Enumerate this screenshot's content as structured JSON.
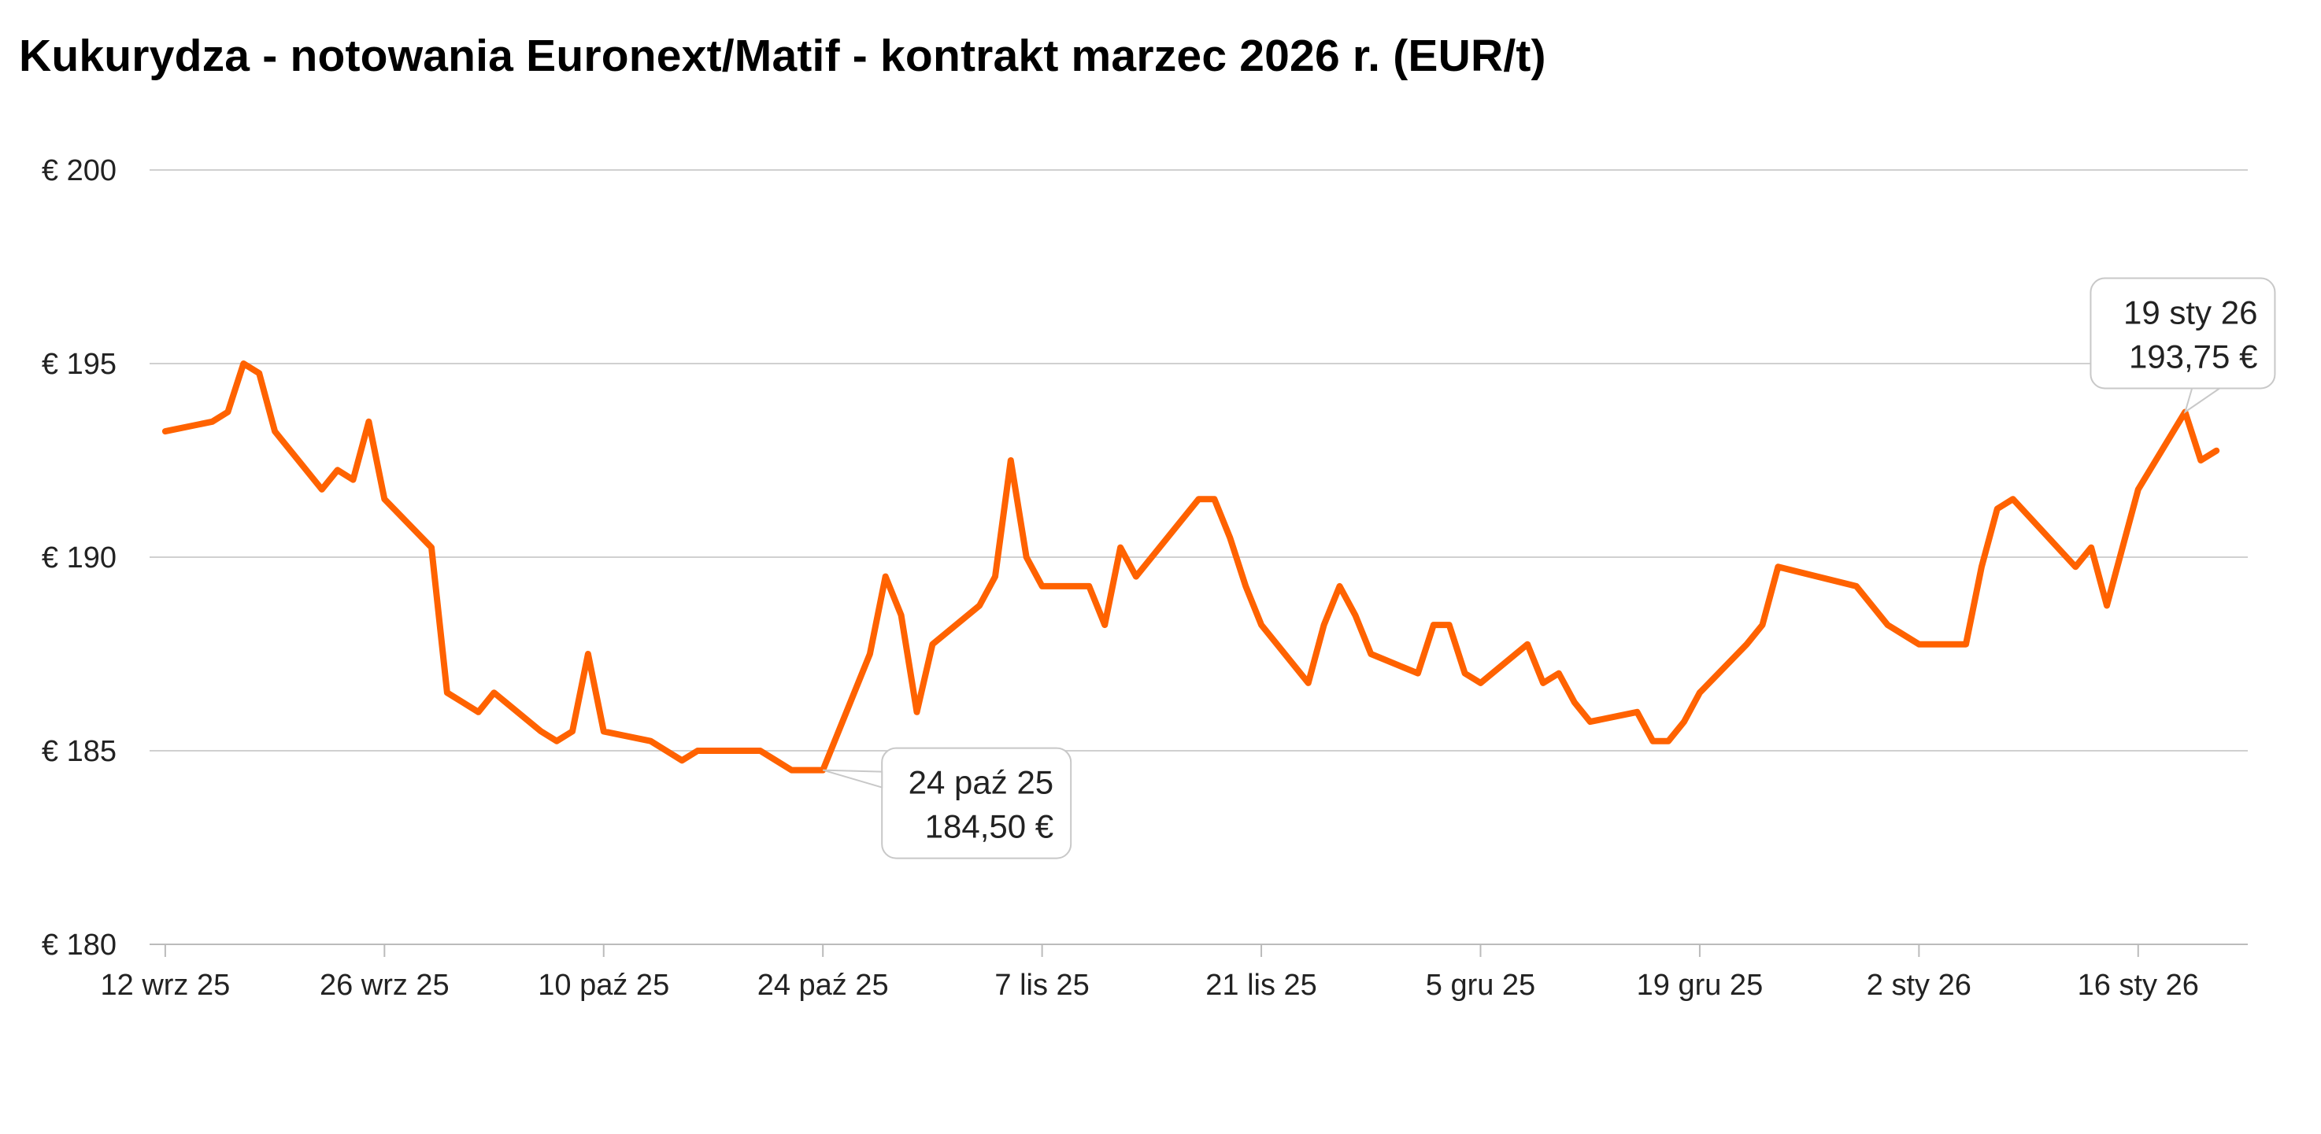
{
  "chart_data": {
    "type": "line",
    "title": "Kukurydza - notowania Euronext/Matif - kontrakt marzec 2026 r. (EUR/t)",
    "xlabel": "",
    "ylabel": "",
    "ylim": [
      180,
      200
    ],
    "y_ticks": [
      200,
      195,
      190,
      185,
      180
    ],
    "y_tick_labels": [
      "€ 200",
      "€ 195",
      "€ 190",
      "€ 185",
      "€ 180"
    ],
    "x_tick_labels": [
      "12 wrz 25",
      "26 wrz 25",
      "10 paź 25",
      "24 paź 25",
      "7 lis 25",
      "21 lis 25",
      "5 gru 25",
      "19 gru 25",
      "2 sty 26",
      "16 sty 26"
    ],
    "x_tick_dates": [
      "2025-09-12",
      "2025-09-26",
      "2025-10-10",
      "2025-10-24",
      "2025-11-07",
      "2025-11-21",
      "2025-12-05",
      "2025-12-19",
      "2026-01-02",
      "2026-01-16"
    ],
    "grid": true,
    "line_color": "#FF6200",
    "series": [
      {
        "name": "",
        "points": [
          [
            "2025-09-12",
            193.25
          ],
          [
            "2025-09-15",
            193.5
          ],
          [
            "2025-09-16",
            193.75
          ],
          [
            "2025-09-17",
            195.0
          ],
          [
            "2025-09-18",
            194.75
          ],
          [
            "2025-09-19",
            193.25
          ],
          [
            "2025-09-22",
            191.75
          ],
          [
            "2025-09-23",
            192.25
          ],
          [
            "2025-09-24",
            192.0
          ],
          [
            "2025-09-25",
            193.5
          ],
          [
            "2025-09-26",
            191.5
          ],
          [
            "2025-09-29",
            190.25
          ],
          [
            "2025-09-30",
            186.5
          ],
          [
            "2025-10-01",
            186.25
          ],
          [
            "2025-10-02",
            186.0
          ],
          [
            "2025-10-03",
            186.5
          ],
          [
            "2025-10-06",
            185.5
          ],
          [
            "2025-10-07",
            185.25
          ],
          [
            "2025-10-08",
            185.5
          ],
          [
            "2025-10-09",
            187.5
          ],
          [
            "2025-10-10",
            185.5
          ],
          [
            "2025-10-13",
            185.25
          ],
          [
            "2025-10-14",
            185.0
          ],
          [
            "2025-10-15",
            184.75
          ],
          [
            "2025-10-16",
            185.0
          ],
          [
            "2025-10-17",
            185.0
          ],
          [
            "2025-10-20",
            185.0
          ],
          [
            "2025-10-21",
            184.75
          ],
          [
            "2025-10-22",
            184.5
          ],
          [
            "2025-10-23",
            184.5
          ],
          [
            "2025-10-24",
            184.5
          ],
          [
            "2025-10-27",
            187.5
          ],
          [
            "2025-10-28",
            189.5
          ],
          [
            "2025-10-29",
            188.5
          ],
          [
            "2025-10-30",
            186.0
          ],
          [
            "2025-10-31",
            187.75
          ],
          [
            "2025-11-03",
            188.75
          ],
          [
            "2025-11-04",
            189.5
          ],
          [
            "2025-11-05",
            192.5
          ],
          [
            "2025-11-06",
            190.0
          ],
          [
            "2025-11-07",
            189.25
          ],
          [
            "2025-11-10",
            189.25
          ],
          [
            "2025-11-11",
            188.25
          ],
          [
            "2025-11-12",
            190.25
          ],
          [
            "2025-11-13",
            189.5
          ],
          [
            "2025-11-17",
            191.5
          ],
          [
            "2025-11-18",
            191.5
          ],
          [
            "2025-11-19",
            190.5
          ],
          [
            "2025-11-20",
            189.25
          ],
          [
            "2025-11-21",
            188.25
          ],
          [
            "2025-11-24",
            186.75
          ],
          [
            "2025-11-25",
            188.25
          ],
          [
            "2025-11-26",
            189.25
          ],
          [
            "2025-11-27",
            188.5
          ],
          [
            "2025-11-28",
            187.5
          ],
          [
            "2025-12-01",
            187.0
          ],
          [
            "2025-12-02",
            188.25
          ],
          [
            "2025-12-03",
            188.25
          ],
          [
            "2025-12-04",
            187.0
          ],
          [
            "2025-12-05",
            186.75
          ],
          [
            "2025-12-08",
            187.75
          ],
          [
            "2025-12-09",
            186.75
          ],
          [
            "2025-12-10",
            187.0
          ],
          [
            "2025-12-11",
            186.25
          ],
          [
            "2025-12-12",
            185.75
          ],
          [
            "2025-12-15",
            186.0
          ],
          [
            "2025-12-16",
            185.25
          ],
          [
            "2025-12-17",
            185.25
          ],
          [
            "2025-12-18",
            185.75
          ],
          [
            "2025-12-19",
            186.5
          ],
          [
            "2025-12-22",
            187.75
          ],
          [
            "2025-12-23",
            188.25
          ],
          [
            "2025-12-24",
            189.75
          ],
          [
            "2025-12-29",
            189.25
          ],
          [
            "2025-12-30",
            188.75
          ],
          [
            "2025-12-31",
            188.25
          ],
          [
            "2026-01-02",
            187.75
          ],
          [
            "2026-01-05",
            187.75
          ],
          [
            "2026-01-06",
            189.75
          ],
          [
            "2026-01-07",
            191.25
          ],
          [
            "2026-01-08",
            191.5
          ],
          [
            "2026-01-12",
            189.75
          ],
          [
            "2026-01-13",
            190.25
          ],
          [
            "2026-01-14",
            188.75
          ],
          [
            "2026-01-16",
            191.75
          ],
          [
            "2026-01-19",
            193.75
          ],
          [
            "2026-01-20",
            192.5
          ],
          [
            "2026-01-21",
            192.75
          ]
        ]
      }
    ],
    "annotations": [
      {
        "date": "2025-10-24",
        "line1": "24 paź 25",
        "line2": "184,50 €",
        "value": 184.5
      },
      {
        "date": "2026-01-19",
        "line1": "19 sty 26",
        "line2": "193,75 €",
        "value": 193.75
      }
    ]
  }
}
